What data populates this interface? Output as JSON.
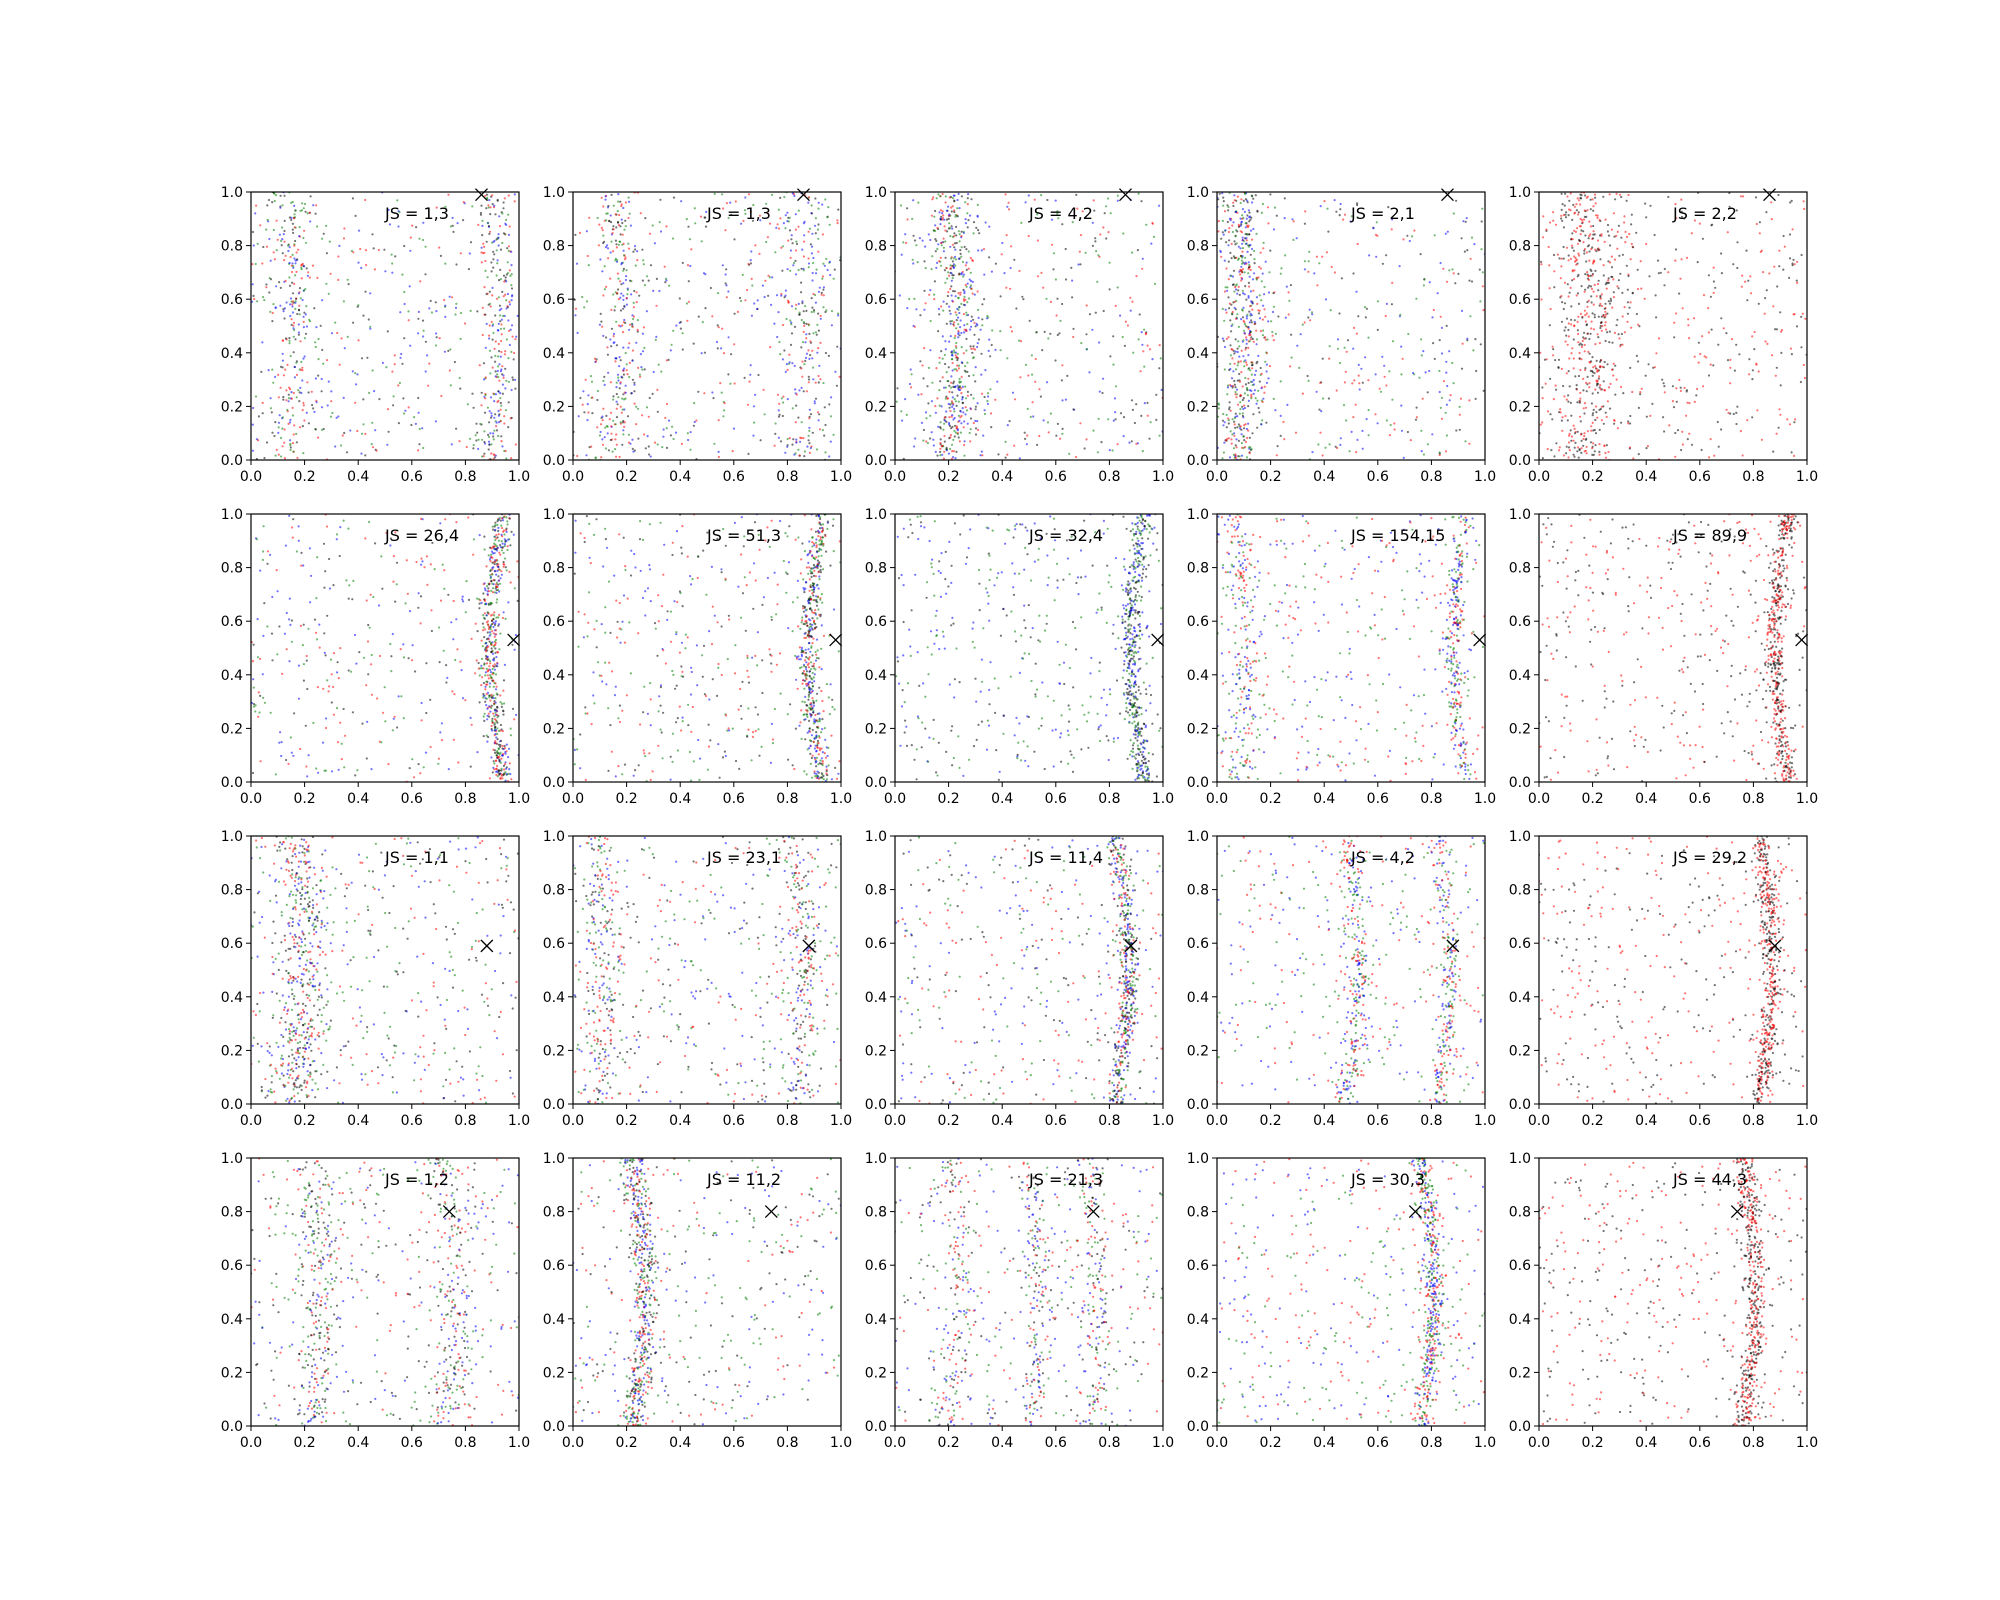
{
  "chart_data": {
    "type": "scatter",
    "layout": {
      "rows": 4,
      "cols": 5
    },
    "xlim": [
      0,
      1
    ],
    "ylim": [
      0,
      1
    ],
    "xticks": [
      "0.0",
      "0.2",
      "0.4",
      "0.6",
      "0.8",
      "1.0"
    ],
    "yticks": [
      "0.0",
      "0.2",
      "0.4",
      "0.6",
      "0.8",
      "1.0"
    ],
    "grid": false,
    "series_colors": {
      "blue": "#0000ff",
      "green": "#008000",
      "red": "#ff0000",
      "black": "#000000"
    },
    "panels": [
      {
        "label": "JS = 1,3",
        "marker": [
          0.86,
          0.99
        ],
        "series": [
          "blue",
          "green",
          "red",
          "black"
        ],
        "bands": [
          {
            "c": 0.12,
            "a": 0.05,
            "w": 0.07
          },
          {
            "c": 0.9,
            "a": 0.03,
            "w": 0.06
          }
        ]
      },
      {
        "label": "JS = 1,3",
        "marker": [
          0.86,
          0.99
        ],
        "series": [
          "blue",
          "green",
          "red",
          "black"
        ],
        "bands": [
          {
            "c": 0.15,
            "a": 0.05,
            "w": 0.07
          },
          {
            "c": 0.85,
            "a": 0.04,
            "w": 0.08
          }
        ]
      },
      {
        "label": "JS = 4,2",
        "marker": [
          0.86,
          0.99
        ],
        "series": [
          "blue",
          "green",
          "red",
          "black"
        ],
        "bands": [
          {
            "c": 0.2,
            "a": 0.04,
            "w": 0.07
          }
        ]
      },
      {
        "label": "JS = 2,1",
        "marker": [
          0.86,
          0.99
        ],
        "series": [
          "blue",
          "green",
          "red",
          "black"
        ],
        "bands": [
          {
            "c": 0.07,
            "a": 0.04,
            "w": 0.07
          }
        ]
      },
      {
        "label": "JS = 2,2",
        "marker": [
          0.86,
          0.99
        ],
        "series": [
          "red",
          "black"
        ],
        "bands": [
          {
            "c": 0.15,
            "a": 0.05,
            "w": 0.1
          }
        ]
      },
      {
        "label": "JS = 26,4",
        "marker": [
          0.98,
          0.53
        ],
        "series": [
          "blue",
          "green",
          "red",
          "black"
        ],
        "bands": [
          {
            "c": 0.94,
            "a": -0.05,
            "w": 0.03
          }
        ]
      },
      {
        "label": "JS = 51,3",
        "marker": [
          0.98,
          0.53
        ],
        "series": [
          "blue",
          "green",
          "red",
          "black"
        ],
        "bands": [
          {
            "c": 0.93,
            "a": -0.05,
            "w": 0.03
          }
        ]
      },
      {
        "label": "JS = 32,4",
        "marker": [
          0.98,
          0.53
        ],
        "series": [
          "blue",
          "green",
          "black"
        ],
        "bands": [
          {
            "c": 0.93,
            "a": -0.05,
            "w": 0.03
          }
        ]
      },
      {
        "label": "JS = 154,15",
        "marker": [
          0.98,
          0.53
        ],
        "series": [
          "blue",
          "green",
          "red"
        ],
        "bands": [
          {
            "c": 0.93,
            "a": -0.05,
            "w": 0.03
          },
          {
            "c": 0.07,
            "a": 0.04,
            "w": 0.05
          }
        ]
      },
      {
        "label": "JS = 89,9",
        "marker": [
          0.98,
          0.53
        ],
        "series": [
          "red",
          "black"
        ],
        "bands": [
          {
            "c": 0.93,
            "a": -0.05,
            "w": 0.03
          }
        ]
      },
      {
        "label": "JS = 1,1",
        "marker": [
          0.88,
          0.59
        ],
        "series": [
          "blue",
          "green",
          "red",
          "black"
        ],
        "bands": [
          {
            "c": 0.15,
            "a": 0.05,
            "w": 0.08
          }
        ]
      },
      {
        "label": "JS = 23,1",
        "marker": [
          0.88,
          0.59
        ],
        "series": [
          "blue",
          "green",
          "red",
          "black"
        ],
        "bands": [
          {
            "c": 0.82,
            "a": 0.05,
            "w": 0.05
          },
          {
            "c": 0.08,
            "a": 0.03,
            "w": 0.06
          }
        ]
      },
      {
        "label": "JS = 11,4",
        "marker": [
          0.88,
          0.59
        ],
        "series": [
          "blue",
          "green",
          "red",
          "black"
        ],
        "bands": [
          {
            "c": 0.82,
            "a": 0.05,
            "w": 0.03
          }
        ]
      },
      {
        "label": "JS = 4,2",
        "marker": [
          0.88,
          0.59
        ],
        "series": [
          "blue",
          "green",
          "red"
        ],
        "bands": [
          {
            "c": 0.82,
            "a": 0.05,
            "w": 0.03
          },
          {
            "c": 0.48,
            "a": 0.05,
            "w": 0.04
          }
        ]
      },
      {
        "label": "JS = 29,2",
        "marker": [
          0.88,
          0.59
        ],
        "series": [
          "red",
          "black"
        ],
        "bands": [
          {
            "c": 0.82,
            "a": 0.05,
            "w": 0.03
          }
        ]
      },
      {
        "label": "JS = 1,2",
        "marker": [
          0.74,
          0.8
        ],
        "series": [
          "blue",
          "green",
          "red",
          "black"
        ],
        "bands": [
          {
            "c": 0.72,
            "a": 0.05,
            "w": 0.06
          },
          {
            "c": 0.22,
            "a": 0.04,
            "w": 0.06
          }
        ]
      },
      {
        "label": "JS = 11,2",
        "marker": [
          0.74,
          0.8
        ],
        "series": [
          "blue",
          "green",
          "red",
          "black"
        ],
        "bands": [
          {
            "c": 0.22,
            "a": 0.05,
            "w": 0.04
          }
        ]
      },
      {
        "label": "JS = 21,3",
        "marker": [
          0.74,
          0.8
        ],
        "series": [
          "blue",
          "green",
          "red",
          "black"
        ],
        "bands": [
          {
            "c": 0.2,
            "a": 0.04,
            "w": 0.05
          },
          {
            "c": 0.5,
            "a": 0.04,
            "w": 0.04
          },
          {
            "c": 0.72,
            "a": 0.04,
            "w": 0.04
          }
        ]
      },
      {
        "label": "JS = 30,3",
        "marker": [
          0.74,
          0.8
        ],
        "series": [
          "blue",
          "green",
          "red"
        ],
        "bands": [
          {
            "c": 0.76,
            "a": 0.05,
            "w": 0.03
          }
        ]
      },
      {
        "label": "JS = 44,3",
        "marker": [
          0.74,
          0.8
        ],
        "series": [
          "red",
          "black"
        ],
        "bands": [
          {
            "c": 0.76,
            "a": 0.05,
            "w": 0.03
          }
        ]
      }
    ]
  }
}
